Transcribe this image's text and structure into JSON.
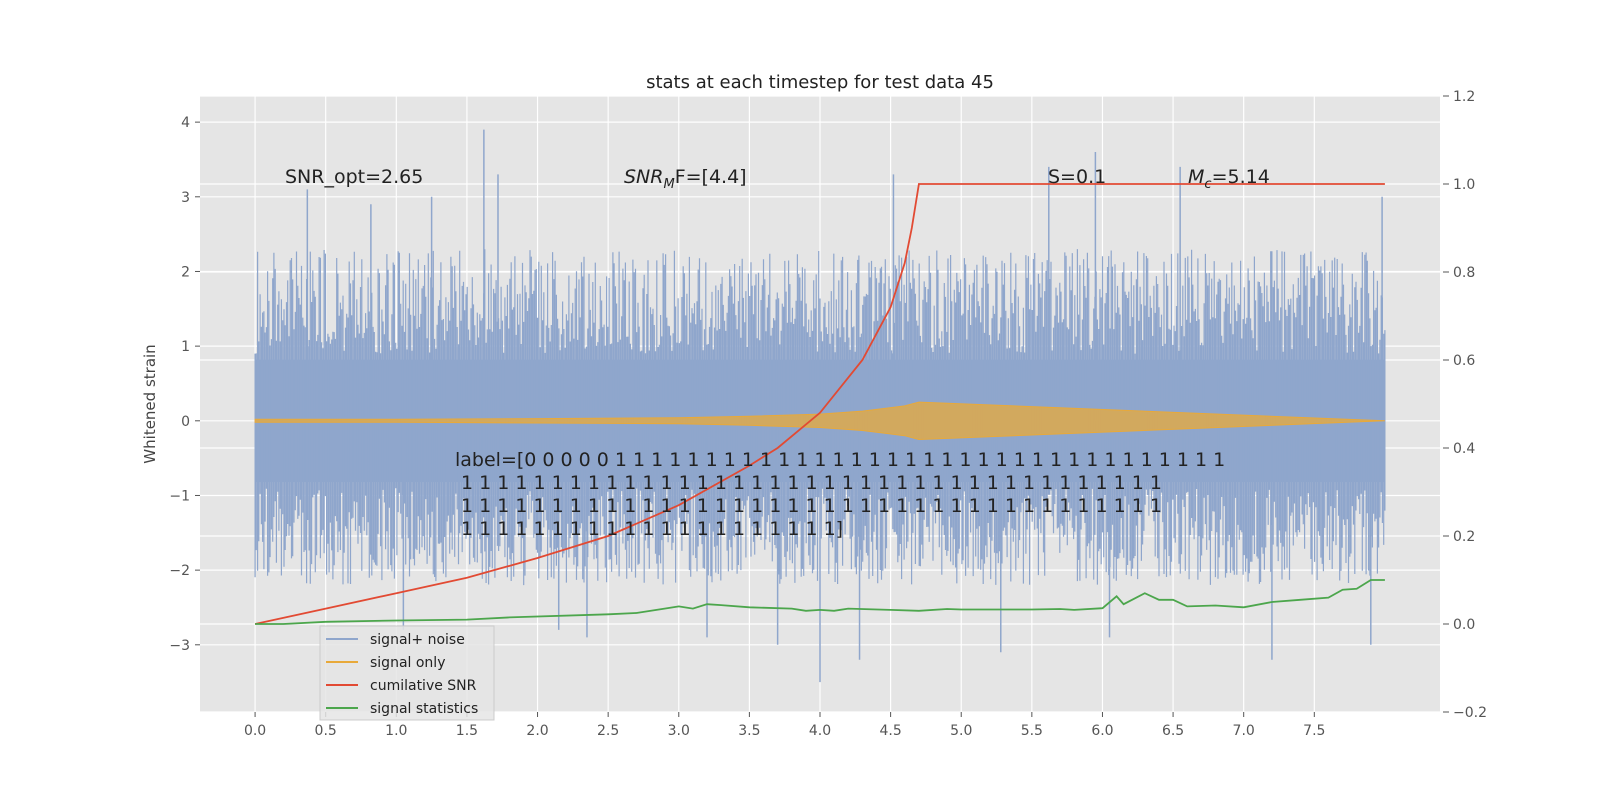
{
  "chart_data": {
    "type": "line",
    "title": "stats at each timestep for test data 45",
    "ylabel": "Whitened strain",
    "xlabel": "",
    "x_range": [
      -0.39,
      8.39
    ],
    "ylim": [
      -3.9,
      4.35
    ],
    "y2lim": [
      -0.2,
      1.2
    ],
    "xticks": [
      "0.0",
      "0.5",
      "1.0",
      "1.5",
      "2.0",
      "2.5",
      "3.0",
      "3.5",
      "4.0",
      "4.5",
      "5.0",
      "5.5",
      "6.0",
      "6.5",
      "7.0",
      "7.5"
    ],
    "yticks": [
      "−3",
      "−2",
      "−1",
      "0",
      "1",
      "2",
      "3",
      "4"
    ],
    "y2ticks": [
      "−0.2",
      "0.0",
      "0.2",
      "0.4",
      "0.6",
      "0.8",
      "1.0",
      "1.2"
    ],
    "grid": true,
    "legend_position": "lower-left",
    "annotations": {
      "snr_opt": "SNR_opt=2.65",
      "snr_mf_main": "SNR",
      "snr_mf_sub": "M",
      "snr_mf_rest": "F=[4.4]",
      "s_stat": "S=0.1",
      "mc_main": "M",
      "mc_sub": "c",
      "mc_rest": "=5.14",
      "label_lines": [
        "label=[0 0 0 0 0 1 1 1 1 1 1 1 1 1 1 1 1 1 1 1 1 1 1 1 1 1 1 1 1 1 1 1 1 1 1 1 1 1 1",
        " 1 1 1 1 1 1 1 1 1 1 1 1 1 1 1 1 1 1 1 1 1 1 1 1 1 1 1 1 1 1 1 1 1 1 1 1 1 1 1",
        " 1 1 1 1 1 1 1 1 1 1 1 1 1 1 1 1 1 1 1 1 1 1 1 1 1 1 1 1 1 1 1 1 1 1 1 1 1 1 1",
        " 1 1 1 1 1 1 1 1 1 1 1 1 1 1 1 1 1 1 1 1 1]"
      ]
    },
    "series": [
      {
        "name": "signal+ noise",
        "color": "#8fa6cc",
        "axis": "left",
        "x_range": [
          0.0,
          8.0
        ],
        "band": [
          -2.2,
          2.3
        ],
        "spikes": [
          [
            0.37,
            3.1
          ],
          [
            0.82,
            2.9
          ],
          [
            1.25,
            3.0
          ],
          [
            1.62,
            3.9
          ],
          [
            1.72,
            3.3
          ],
          [
            4.52,
            3.3
          ],
          [
            5.62,
            3.4
          ],
          [
            5.95,
            3.6
          ],
          [
            6.55,
            3.4
          ],
          [
            7.98,
            3.0
          ],
          [
            1.05,
            -2.8
          ],
          [
            2.15,
            -2.8
          ],
          [
            2.35,
            -2.9
          ],
          [
            3.2,
            -2.9
          ],
          [
            3.7,
            -3.0
          ],
          [
            4.0,
            -3.5
          ],
          [
            4.28,
            -3.2
          ],
          [
            5.28,
            -3.1
          ],
          [
            6.05,
            -2.9
          ],
          [
            7.2,
            -3.2
          ],
          [
            7.9,
            -3.0
          ]
        ]
      },
      {
        "name": "signal only",
        "color": "#e8a93a",
        "axis": "left",
        "x": [
          0.0,
          1.0,
          2.0,
          3.0,
          3.5,
          4.0,
          4.3,
          4.6,
          4.7,
          8.0
        ],
        "amplitude": [
          0.02,
          0.02,
          0.03,
          0.04,
          0.06,
          0.09,
          0.13,
          0.2,
          0.25,
          0.0
        ]
      },
      {
        "name": "cumilative SNR",
        "color": "#e24a33",
        "axis": "right",
        "x": [
          0.0,
          0.5,
          1.0,
          1.5,
          2.0,
          2.5,
          3.0,
          3.5,
          3.7,
          4.0,
          4.3,
          4.5,
          4.6,
          4.65,
          4.7,
          8.0
        ],
        "y": [
          0.0,
          0.035,
          0.07,
          0.105,
          0.15,
          0.2,
          0.27,
          0.36,
          0.4,
          0.48,
          0.6,
          0.72,
          0.82,
          0.9,
          1.0,
          1.0
        ]
      },
      {
        "name": "signal statistics",
        "color": "#4ca64c",
        "axis": "right",
        "x": [
          0.0,
          0.2,
          0.5,
          1.0,
          1.5,
          1.8,
          2.5,
          2.7,
          2.9,
          3.0,
          3.1,
          3.2,
          3.3,
          3.5,
          3.8,
          3.9,
          4.0,
          4.1,
          4.2,
          4.5,
          4.7,
          4.9,
          5.0,
          5.5,
          5.7,
          5.8,
          6.0,
          6.1,
          6.15,
          6.3,
          6.4,
          6.5,
          6.6,
          6.8,
          7.0,
          7.2,
          7.4,
          7.6,
          7.7,
          7.8,
          7.9,
          8.0
        ],
        "y": [
          0.0,
          0.0,
          0.005,
          0.008,
          0.01,
          0.015,
          0.022,
          0.025,
          0.035,
          0.04,
          0.035,
          0.045,
          0.043,
          0.038,
          0.035,
          0.03,
          0.032,
          0.03,
          0.035,
          0.032,
          0.03,
          0.034,
          0.033,
          0.033,
          0.034,
          0.032,
          0.036,
          0.063,
          0.045,
          0.07,
          0.055,
          0.055,
          0.04,
          0.042,
          0.038,
          0.05,
          0.055,
          0.06,
          0.078,
          0.08,
          0.1,
          0.1
        ]
      }
    ]
  }
}
